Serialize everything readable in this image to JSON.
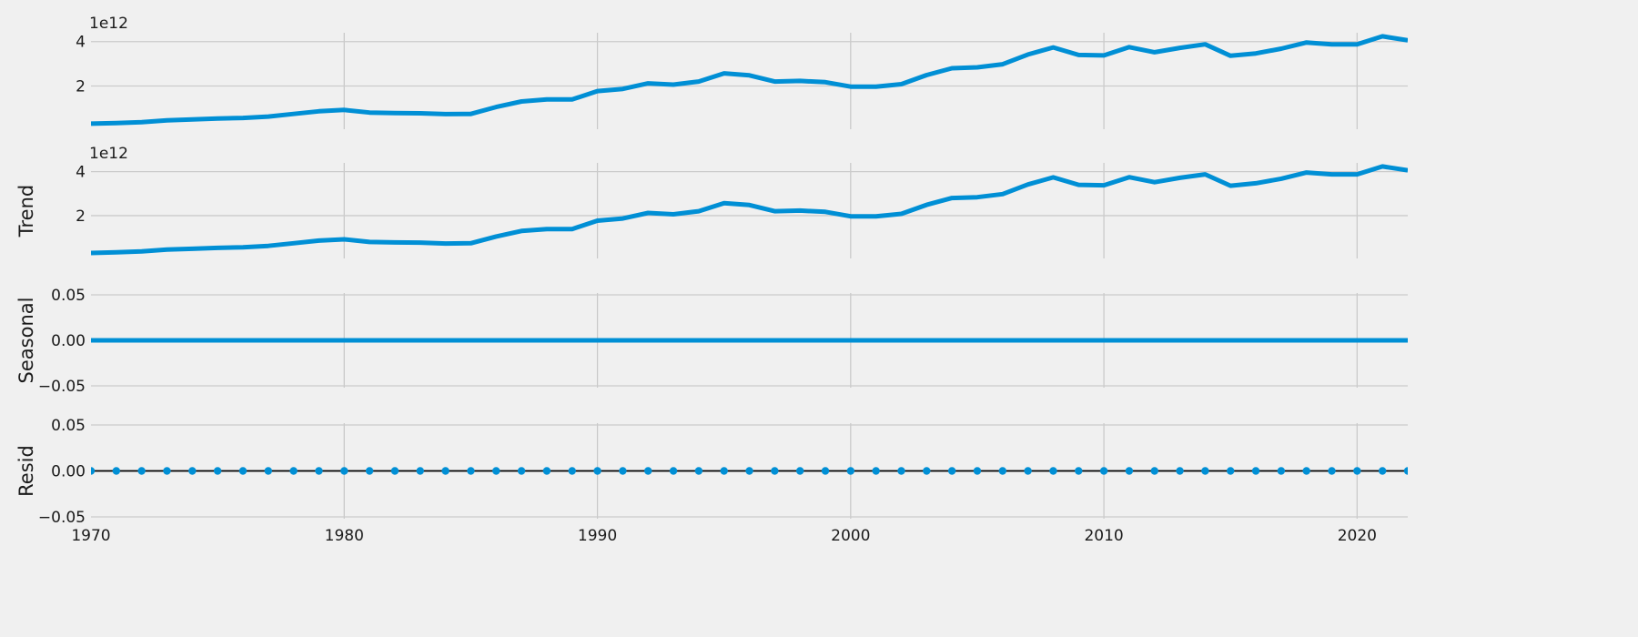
{
  "figure": {
    "background": "#f0f0f0",
    "line_color": "#008fd5",
    "grid_color": "#cbcbcb"
  },
  "chart_data": [
    {
      "type": "line",
      "title": "",
      "ylabel": "",
      "offset_label": "1e12",
      "xlim": [
        1970,
        2022
      ],
      "ylim": [
        0.05,
        4.4
      ],
      "yticks": [
        2,
        4
      ],
      "ytick_labels": [
        "2",
        "4"
      ],
      "series": [
        {
          "x": [
            1970,
            1971,
            1972,
            1973,
            1974,
            1975,
            1976,
            1977,
            1978,
            1979,
            1980,
            1981,
            1982,
            1983,
            1984,
            1985,
            1986,
            1987,
            1988,
            1989,
            1990,
            1991,
            1992,
            1993,
            1994,
            1995,
            1996,
            1997,
            1998,
            1999,
            2000,
            2001,
            2002,
            2003,
            2004,
            2005,
            2006,
            2007,
            2008,
            2009,
            2010,
            2011,
            2012,
            2013,
            2014,
            2015,
            2016,
            2017,
            2018,
            2019,
            2020,
            2021,
            2022
          ],
          "y": [
            0.3,
            0.33,
            0.37,
            0.45,
            0.49,
            0.53,
            0.56,
            0.62,
            0.74,
            0.86,
            0.92,
            0.8,
            0.78,
            0.77,
            0.73,
            0.74,
            1.05,
            1.3,
            1.39,
            1.39,
            1.77,
            1.87,
            2.12,
            2.06,
            2.2,
            2.57,
            2.48,
            2.2,
            2.23,
            2.17,
            1.97,
            1.97,
            2.08,
            2.49,
            2.8,
            2.84,
            2.98,
            3.42,
            3.74,
            3.4,
            3.38,
            3.75,
            3.52,
            3.72,
            3.88,
            3.36,
            3.47,
            3.68,
            3.96,
            3.88,
            3.88,
            4.24,
            4.06
          ]
        }
      ]
    },
    {
      "type": "line",
      "title": "",
      "ylabel": "Trend",
      "offset_label": "1e12",
      "xlim": [
        1970,
        2022
      ],
      "ylim": [
        0.05,
        4.4
      ],
      "yticks": [
        2,
        4
      ],
      "ytick_labels": [
        "2",
        "4"
      ],
      "series": [
        {
          "x": [
            1970,
            1971,
            1972,
            1973,
            1974,
            1975,
            1976,
            1977,
            1978,
            1979,
            1980,
            1981,
            1982,
            1983,
            1984,
            1985,
            1986,
            1987,
            1988,
            1989,
            1990,
            1991,
            1992,
            1993,
            1994,
            1995,
            1996,
            1997,
            1998,
            1999,
            2000,
            2001,
            2002,
            2003,
            2004,
            2005,
            2006,
            2007,
            2008,
            2009,
            2010,
            2011,
            2012,
            2013,
            2014,
            2015,
            2016,
            2017,
            2018,
            2019,
            2020,
            2021,
            2022
          ],
          "y": [
            0.3,
            0.33,
            0.37,
            0.45,
            0.49,
            0.53,
            0.56,
            0.62,
            0.74,
            0.86,
            0.92,
            0.8,
            0.78,
            0.77,
            0.73,
            0.74,
            1.05,
            1.3,
            1.39,
            1.39,
            1.77,
            1.87,
            2.12,
            2.06,
            2.2,
            2.57,
            2.48,
            2.2,
            2.23,
            2.17,
            1.97,
            1.97,
            2.08,
            2.49,
            2.8,
            2.84,
            2.98,
            3.42,
            3.74,
            3.4,
            3.38,
            3.75,
            3.52,
            3.72,
            3.88,
            3.36,
            3.47,
            3.68,
            3.96,
            3.88,
            3.88,
            4.24,
            4.06
          ]
        }
      ]
    },
    {
      "type": "line",
      "title": "",
      "ylabel": "Seasonal",
      "xlim": [
        1970,
        2022
      ],
      "ylim": [
        -0.052,
        0.052
      ],
      "yticks": [
        0.05,
        0.0,
        -0.05
      ],
      "ytick_labels": [
        "0.05",
        "0.00",
        "−0.05"
      ],
      "series": [
        {
          "x": [
            1970,
            2022
          ],
          "y": [
            0.0,
            0.0
          ]
        }
      ]
    },
    {
      "type": "scatter",
      "title": "",
      "ylabel": "Resid",
      "xlim": [
        1970,
        2022
      ],
      "ylim": [
        -0.052,
        0.052
      ],
      "yticks": [
        0.05,
        0.0,
        -0.05
      ],
      "ytick_labels": [
        "0.05",
        "0.00",
        "−0.05"
      ],
      "xticks": [
        1970,
        1980,
        1990,
        2000,
        2010,
        2020
      ],
      "xtick_labels": [
        "1970",
        "1980",
        "1990",
        "2000",
        "2010",
        "2020"
      ],
      "baseline": 0.0,
      "series": [
        {
          "x": [
            1970,
            1971,
            1972,
            1973,
            1974,
            1975,
            1976,
            1977,
            1978,
            1979,
            1980,
            1981,
            1982,
            1983,
            1984,
            1985,
            1986,
            1987,
            1988,
            1989,
            1990,
            1991,
            1992,
            1993,
            1994,
            1995,
            1996,
            1997,
            1998,
            1999,
            2000,
            2001,
            2002,
            2003,
            2004,
            2005,
            2006,
            2007,
            2008,
            2009,
            2010,
            2011,
            2012,
            2013,
            2014,
            2015,
            2016,
            2017,
            2018,
            2019,
            2020,
            2021,
            2022
          ],
          "y": [
            0,
            0,
            0,
            0,
            0,
            0,
            0,
            0,
            0,
            0,
            0,
            0,
            0,
            0,
            0,
            0,
            0,
            0,
            0,
            0,
            0,
            0,
            0,
            0,
            0,
            0,
            0,
            0,
            0,
            0,
            0,
            0,
            0,
            0,
            0,
            0,
            0,
            0,
            0,
            0,
            0,
            0,
            0,
            0,
            0,
            0,
            0,
            0,
            0,
            0,
            0,
            0,
            0
          ]
        }
      ]
    }
  ]
}
